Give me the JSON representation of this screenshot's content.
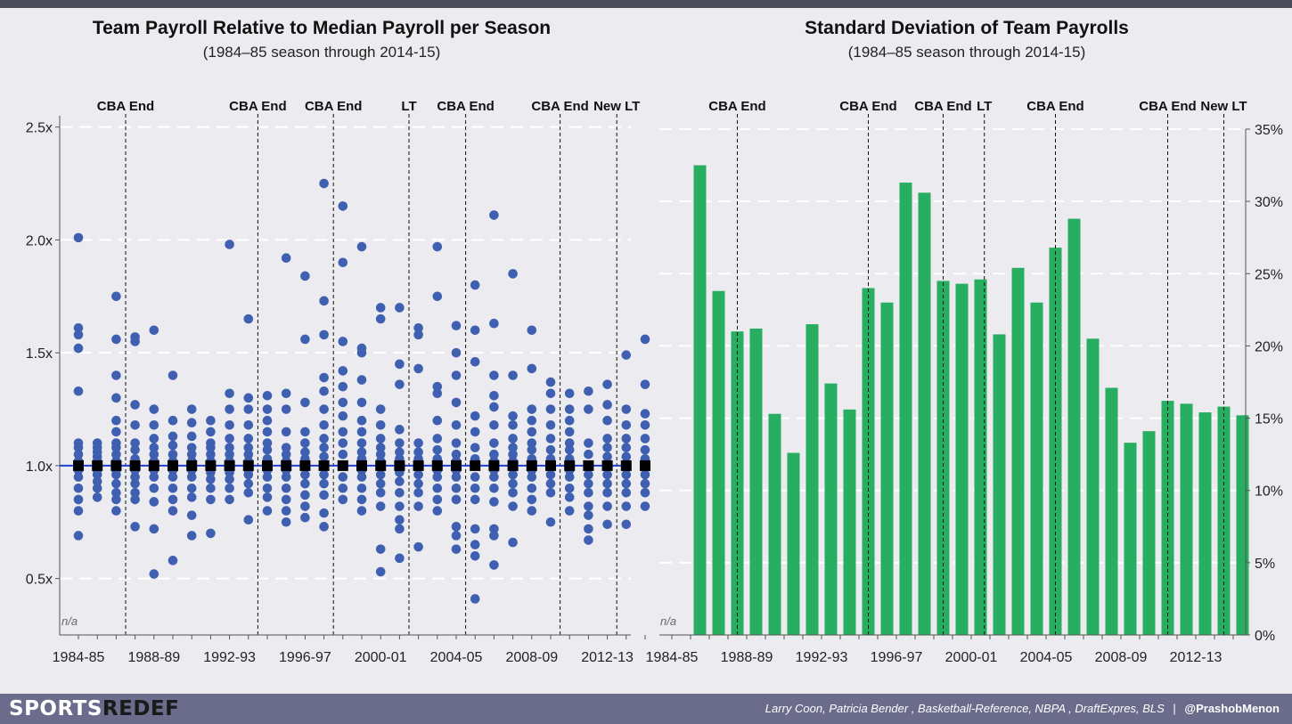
{
  "footer": {
    "brand_part1": "SPORTS",
    "brand_part2": "REDEF",
    "sources": "Larry Coon, Patricia Bender , Basketball-Reference, NBPA , DraftExpres, BLS",
    "separator": "|",
    "handle": "@PrashobMenon"
  },
  "colors": {
    "dot": "#3f5fb1",
    "median_marker": "#000000",
    "median_line": "#1f3fd6",
    "bar": "#27ae60",
    "background": "#ecebef"
  },
  "chart_data": [
    {
      "type": "scatter",
      "title": "Team Payroll Relative to Median Payroll per Season",
      "subtitle": "(1984–85  season through 2014-15)",
      "na_label": "n/a",
      "x_tick_labels": [
        "1984-85",
        "1988-89",
        "1992-93",
        "1996-97",
        "2000-01",
        "2004-05",
        "2008-09",
        "2012-13"
      ],
      "x_tick_season_index": [
        0,
        4,
        8,
        12,
        16,
        20,
        24,
        28
      ],
      "y_tick_labels": [
        "0.5x",
        "1.0x",
        "1.5x",
        "2.0x",
        "2.5x"
      ],
      "y_ticks": [
        0.5,
        1.0,
        1.5,
        2.0,
        2.5
      ],
      "ylim": [
        0.25,
        2.55
      ],
      "median_value": 1.0,
      "seasons": [
        "1984-85",
        "1985-86",
        "1986-87",
        "1987-88",
        "1988-89",
        "1989-90",
        "1990-91",
        "1991-92",
        "1992-93",
        "1993-94",
        "1994-95",
        "1995-96",
        "1996-97",
        "1997-98",
        "1998-99",
        "1999-00",
        "2000-01",
        "2001-02",
        "2002-03",
        "2003-04",
        "2004-05",
        "2005-06",
        "2006-07",
        "2007-08",
        "2008-09",
        "2009-10",
        "2010-11",
        "2011-12",
        "2012-13",
        "2013-14",
        "2014-15"
      ],
      "events": [
        {
          "label": "CBA End",
          "position": 2.0
        },
        {
          "label": "CBA End",
          "position": 9.0
        },
        {
          "label": "CBA End",
          "position": 13.0
        },
        {
          "label": "LT",
          "position": 17.0
        },
        {
          "label": "CBA End",
          "position": 20.0
        },
        {
          "label": "CBA End",
          "position": 25.0
        },
        {
          "label": "New LT",
          "position": 28.0
        }
      ],
      "team_ratios": [
        [
          0.69,
          0.8,
          0.85,
          0.9,
          0.95,
          0.98,
          1.0,
          1.02,
          1.05,
          1.08,
          1.1,
          1.33,
          1.52,
          1.58,
          1.61,
          2.01
        ],
        [
          0.86,
          0.9,
          0.93,
          0.96,
          0.98,
          1.0,
          1.02,
          1.04,
          1.06,
          1.08,
          1.1
        ],
        [
          0.8,
          0.85,
          0.88,
          0.92,
          0.96,
          0.98,
          1.0,
          1.02,
          1.05,
          1.08,
          1.1,
          1.15,
          1.2,
          1.3,
          1.4,
          1.56,
          1.75
        ],
        [
          0.73,
          0.85,
          0.88,
          0.92,
          0.95,
          0.98,
          1.0,
          1.03,
          1.07,
          1.1,
          1.18,
          1.27,
          1.55,
          1.57
        ],
        [
          0.52,
          0.72,
          0.84,
          0.9,
          0.95,
          0.98,
          1.0,
          1.02,
          1.05,
          1.08,
          1.12,
          1.18,
          1.25,
          1.6
        ],
        [
          0.58,
          0.8,
          0.85,
          0.9,
          0.95,
          0.98,
          1.0,
          1.02,
          1.05,
          1.09,
          1.13,
          1.2,
          1.4
        ],
        [
          0.69,
          0.78,
          0.86,
          0.9,
          0.95,
          0.98,
          1.0,
          1.02,
          1.05,
          1.08,
          1.13,
          1.19,
          1.25
        ],
        [
          0.7,
          0.85,
          0.9,
          0.94,
          0.97,
          1.0,
          1.02,
          1.05,
          1.08,
          1.1,
          1.15,
          1.2
        ],
        [
          0.85,
          0.9,
          0.94,
          0.97,
          1.0,
          1.02,
          1.05,
          1.08,
          1.12,
          1.18,
          1.25,
          1.32,
          1.98
        ],
        [
          0.76,
          0.88,
          0.92,
          0.96,
          0.98,
          1.0,
          1.02,
          1.05,
          1.08,
          1.12,
          1.18,
          1.25,
          1.3,
          1.65
        ],
        [
          0.8,
          0.86,
          0.9,
          0.95,
          0.98,
          1.0,
          1.03,
          1.07,
          1.1,
          1.15,
          1.2,
          1.25,
          1.31
        ],
        [
          0.75,
          0.8,
          0.85,
          0.9,
          0.95,
          0.98,
          1.0,
          1.02,
          1.05,
          1.08,
          1.15,
          1.25,
          1.32,
          1.92
        ],
        [
          0.77,
          0.82,
          0.87,
          0.92,
          0.96,
          1.0,
          1.03,
          1.06,
          1.1,
          1.15,
          1.28,
          1.56,
          1.84
        ],
        [
          0.73,
          0.79,
          0.87,
          0.92,
          0.96,
          1.0,
          1.04,
          1.08,
          1.12,
          1.18,
          1.25,
          1.33,
          1.39,
          1.58,
          1.73,
          2.25
        ],
        [
          0.85,
          0.9,
          0.95,
          1.0,
          1.05,
          1.1,
          1.15,
          1.22,
          1.28,
          1.35,
          1.42,
          1.55,
          1.9,
          2.15
        ],
        [
          0.8,
          0.85,
          0.9,
          0.95,
          0.98,
          1.0,
          1.03,
          1.06,
          1.1,
          1.15,
          1.2,
          1.28,
          1.38,
          1.5,
          1.52,
          1.97
        ],
        [
          0.53,
          0.63,
          0.82,
          0.88,
          0.92,
          0.96,
          1.0,
          1.02,
          1.05,
          1.08,
          1.12,
          1.18,
          1.25,
          1.65,
          1.7
        ],
        [
          0.59,
          0.72,
          0.76,
          0.82,
          0.88,
          0.93,
          0.97,
          1.0,
          1.03,
          1.06,
          1.1,
          1.16,
          1.36,
          1.45,
          1.7
        ],
        [
          0.64,
          0.82,
          0.88,
          0.92,
          0.96,
          1.0,
          1.03,
          1.06,
          1.1,
          1.43,
          1.58,
          1.61
        ],
        [
          0.8,
          0.85,
          0.9,
          0.95,
          0.98,
          1.0,
          1.03,
          1.07,
          1.12,
          1.2,
          1.32,
          1.35,
          1.75,
          1.97
        ],
        [
          0.63,
          0.69,
          0.73,
          0.85,
          0.9,
          0.95,
          0.98,
          1.0,
          1.02,
          1.05,
          1.1,
          1.18,
          1.28,
          1.4,
          1.5,
          1.62
        ],
        [
          0.41,
          0.6,
          0.65,
          0.72,
          0.85,
          0.9,
          0.95,
          1.0,
          1.03,
          1.08,
          1.15,
          1.22,
          1.46,
          1.6,
          1.8
        ],
        [
          0.56,
          0.69,
          0.72,
          0.84,
          0.9,
          0.95,
          0.98,
          1.0,
          1.02,
          1.05,
          1.1,
          1.18,
          1.26,
          1.31,
          1.4,
          1.63,
          2.11
        ],
        [
          0.66,
          0.82,
          0.88,
          0.92,
          0.96,
          1.0,
          1.02,
          1.05,
          1.08,
          1.12,
          1.18,
          1.22,
          1.4,
          1.85
        ],
        [
          0.8,
          0.85,
          0.9,
          0.95,
          0.98,
          1.0,
          1.03,
          1.07,
          1.1,
          1.15,
          1.2,
          1.25,
          1.43,
          1.6
        ],
        [
          0.75,
          0.88,
          0.92,
          0.96,
          1.0,
          1.03,
          1.07,
          1.12,
          1.18,
          1.25,
          1.32,
          1.37
        ],
        [
          0.8,
          0.86,
          0.9,
          0.95,
          0.98,
          1.0,
          1.03,
          1.07,
          1.1,
          1.15,
          1.2,
          1.25,
          1.32
        ],
        [
          0.67,
          0.72,
          0.78,
          0.82,
          0.88,
          0.92,
          0.96,
          1.0,
          1.05,
          1.1,
          1.25,
          1.33
        ],
        [
          0.74,
          0.82,
          0.88,
          0.92,
          0.96,
          1.0,
          1.04,
          1.08,
          1.12,
          1.2,
          1.27,
          1.36
        ],
        [
          0.74,
          0.82,
          0.88,
          0.92,
          0.96,
          1.0,
          1.04,
          1.08,
          1.12,
          1.18,
          1.25,
          1.49
        ],
        [
          0.82,
          0.88,
          0.92,
          0.96,
          1.0,
          1.03,
          1.07,
          1.12,
          1.18,
          1.23,
          1.36,
          1.56
        ]
      ]
    },
    {
      "type": "bar",
      "title": "Standard Deviation of Team Payrolls",
      "subtitle": "(1984–85  season through 2014-15)",
      "na_label": "n/a",
      "x_tick_labels": [
        "1984-85",
        "1988-89",
        "1992-93",
        "1996-97",
        "2000-01",
        "2004-05",
        "2008-09",
        "2012-13"
      ],
      "x_tick_season_index": [
        0,
        4,
        8,
        12,
        16,
        20,
        24,
        28
      ],
      "y_tick_labels": [
        "0%",
        "5%",
        "10%",
        "15%",
        "20%",
        "25%",
        "30%",
        "35%"
      ],
      "y_ticks": [
        0,
        5,
        10,
        15,
        20,
        25,
        30,
        35
      ],
      "ylim": [
        0,
        35
      ],
      "ylabel": "",
      "events": [
        {
          "label": "CBA End",
          "position": 3.0
        },
        {
          "label": "CBA End",
          "position": 10.0
        },
        {
          "label": "CBA End",
          "position": 14.0
        },
        {
          "label": "LT",
          "position": 16.2
        },
        {
          "label": "CBA End",
          "position": 20.0
        },
        {
          "label": "CBA End",
          "position": 26.0
        },
        {
          "label": "New LT",
          "position": 29.0
        }
      ],
      "categories": [
        "1984-85",
        "1985-86",
        "1986-87",
        "1987-88",
        "1988-89",
        "1989-90",
        "1990-91",
        "1991-92",
        "1992-93",
        "1993-94",
        "1994-95",
        "1995-96",
        "1996-97",
        "1997-98",
        "1998-99",
        "1999-00",
        "2000-01",
        "2001-02",
        "2002-03",
        "2003-04",
        "2004-05",
        "2005-06",
        "2006-07",
        "2007-08",
        "2008-09",
        "2009-10",
        "2010-11",
        "2011-12",
        "2012-13",
        "2013-14",
        "2014-15"
      ],
      "values": [
        null,
        32.5,
        23.8,
        21.0,
        21.2,
        15.3,
        12.6,
        21.5,
        17.4,
        15.6,
        24.0,
        23.0,
        31.3,
        30.6,
        24.5,
        24.3,
        24.6,
        20.8,
        25.4,
        23.0,
        26.8,
        28.8,
        20.5,
        17.1,
        13.3,
        14.1,
        16.2,
        16.0,
        15.4,
        15.8,
        15.2
      ]
    }
  ]
}
